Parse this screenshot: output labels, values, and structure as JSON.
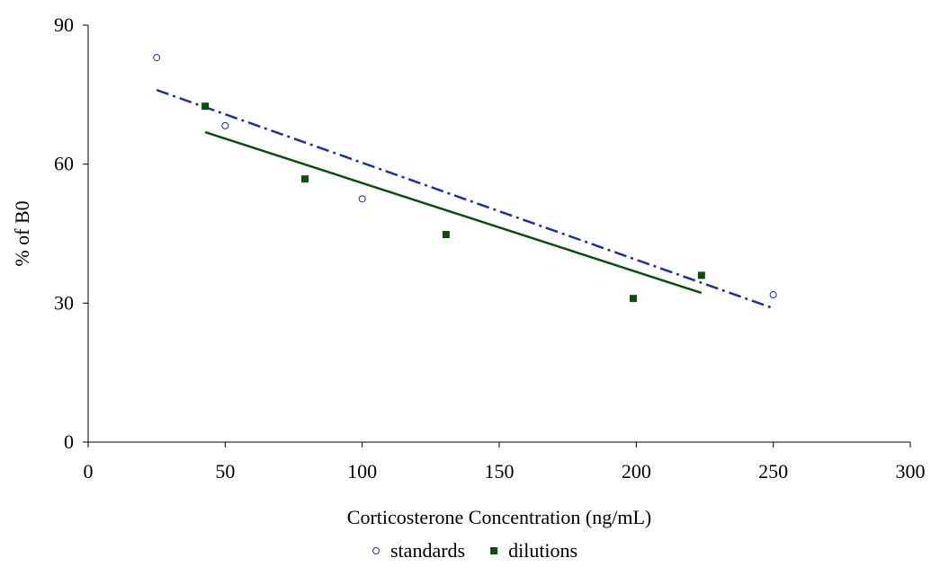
{
  "chart_data": {
    "type": "scatter",
    "x_label": "Corticosterone Concentration (ng/mL)",
    "y_label": "% of B0",
    "xlim": [
      0,
      300
    ],
    "xticks": [
      0,
      50,
      100,
      150,
      200,
      250,
      300
    ],
    "ylim": [
      0,
      90
    ],
    "yticks": [
      0,
      30,
      60,
      90
    ],
    "grid": false,
    "legend": "bottom",
    "series": [
      {
        "name": "standards",
        "color": "#1a2fa8",
        "marker": "open-circle",
        "x": [
          25,
          50,
          100,
          250
        ],
        "values": [
          83,
          68.3,
          52.5,
          31.8
        ],
        "trendline": {
          "style": "dash-dot",
          "x": [
            25,
            250
          ],
          "values": [
            76,
            28.9
          ]
        }
      },
      {
        "name": "dilutions",
        "color": "#0b4f0b",
        "marker": "square",
        "x": [
          42.7,
          79.1,
          130.6,
          198.9,
          223.8
        ],
        "values": [
          72.5,
          56.8,
          44.8,
          31,
          36
        ],
        "trendline": {
          "style": "solid",
          "x": [
            42.7,
            223.8
          ],
          "values": [
            66.9,
            32.2
          ]
        }
      }
    ]
  }
}
